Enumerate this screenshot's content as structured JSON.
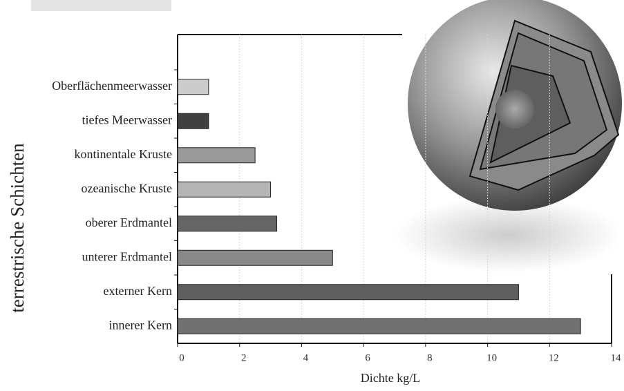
{
  "chart_data": {
    "type": "bar",
    "orientation": "horizontal",
    "ylabel": "terrestrische Schichten",
    "xlabel": "Dichte kg/L",
    "categories": [
      "Oberflächenmeerwasser",
      "tiefes Meerwasser",
      "kontinentale Kruste",
      "ozeanische Kruste",
      "oberer Erdmantel",
      "unterer Erdmantel",
      "externer Kern",
      "innerer Kern"
    ],
    "values": [
      1.0,
      1.0,
      2.5,
      3.0,
      3.2,
      5.0,
      11.0,
      13.0
    ],
    "colors": [
      "#cccccc",
      "#404040",
      "#9a9a9a",
      "#b4b4b4",
      "#666666",
      "#888888",
      "#5e5e5e",
      "#707070"
    ],
    "xlim": [
      0,
      14
    ],
    "xticks": [
      0,
      2,
      4,
      6,
      8,
      10,
      12,
      14
    ],
    "grid": true
  }
}
